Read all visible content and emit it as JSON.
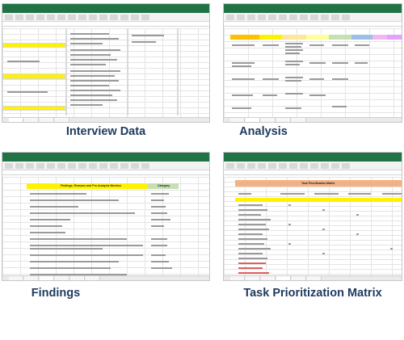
{
  "panels": [
    {
      "id": "interview-data",
      "caption": "Interview Data"
    },
    {
      "id": "analysis",
      "caption": "Analysis"
    },
    {
      "id": "findings",
      "caption": "Findings"
    },
    {
      "id": "task-prioritization-matrix",
      "caption": "Task Prioritization Matrix"
    }
  ],
  "sheets": {
    "findings_header": "Findings, Reasons and Pre-Analysis Mention",
    "findings_category_header": "Category",
    "matrix_title": "Task Prioritization Matrix"
  },
  "colors": {
    "excel_green": "#217346",
    "highlight_yellow": "#fff200",
    "header_green": "#c6e0b4",
    "matrix_orange": "#f4b183",
    "caption_color": "#1e3a5f"
  }
}
